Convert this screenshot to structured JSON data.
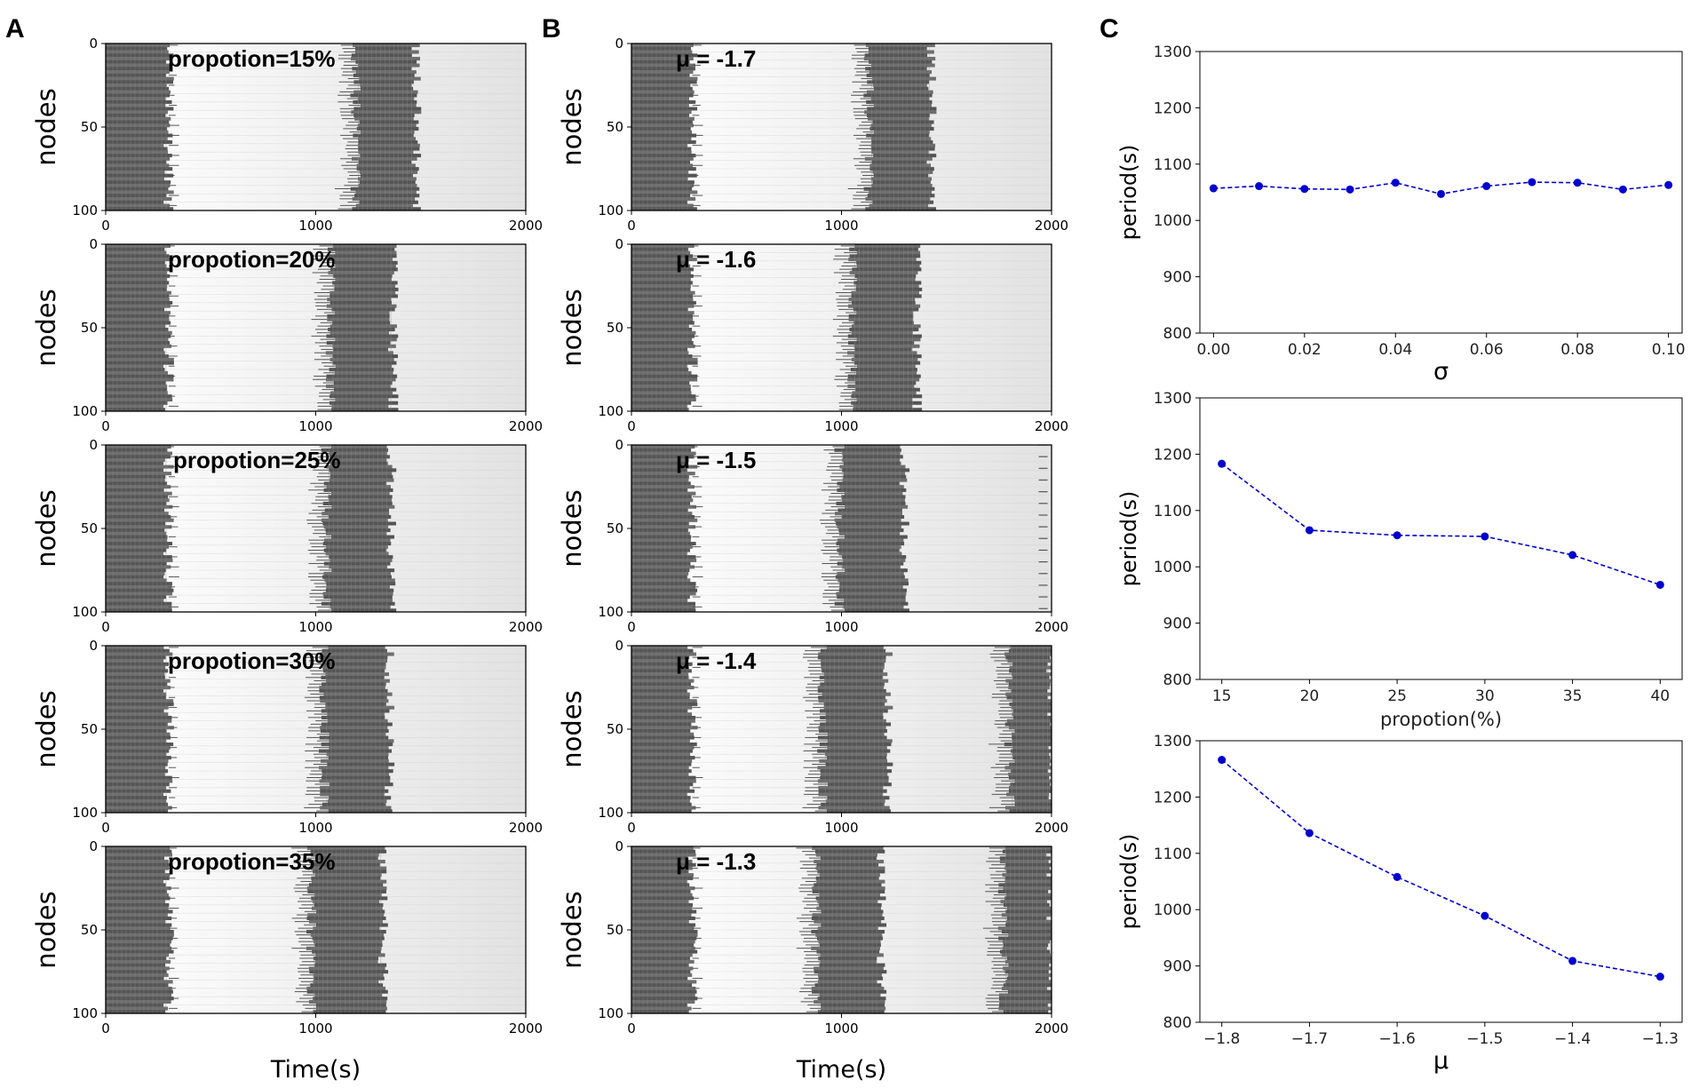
{
  "panel_labels": [
    "A",
    "B",
    "C"
  ],
  "colors": {
    "series": "#0000cc",
    "raster": "#6e6e6e",
    "raster_dark": "#555555",
    "axis": "#000000"
  },
  "chart_data": [
    {
      "type": "heatmap",
      "panel": "A",
      "title": "",
      "xlabel": "Time(s)",
      "ylabel": "nodes",
      "xlim": [
        0,
        2000
      ],
      "ylim": [
        100,
        0
      ],
      "x_ticks": [
        "0",
        "1000",
        "2000"
      ],
      "y_ticks": [
        "0",
        "50",
        "100"
      ],
      "subplots": [
        {
          "annotation": "propotion=15%",
          "bands": [
            [
              0,
              300
            ],
            [
              1190,
              1480
            ]
          ],
          "edge_ticks": []
        },
        {
          "annotation": "propotion=20%",
          "bands": [
            [
              0,
              300
            ],
            [
              1070,
              1370
            ]
          ],
          "edge_ticks": []
        },
        {
          "annotation": "propotion=25%",
          "bands": [
            [
              0,
              300
            ],
            [
              1050,
              1360
            ]
          ],
          "edge_ticks": []
        },
        {
          "annotation": "propotion=30%",
          "bands": [
            [
              0,
              300
            ],
            [
              1040,
              1350
            ]
          ],
          "edge_ticks": []
        },
        {
          "annotation": "propotion=35%",
          "bands": [
            [
              0,
              300
            ],
            [
              980,
              1320
            ]
          ],
          "edge_ticks": []
        }
      ]
    },
    {
      "type": "heatmap",
      "panel": "B",
      "title": "",
      "xlabel": "Time(s)",
      "ylabel": "nodes",
      "xlim": [
        0,
        2000
      ],
      "ylim": [
        100,
        0
      ],
      "x_ticks": [
        "0",
        "1000",
        "2000"
      ],
      "y_ticks": [
        "0",
        "50",
        "100"
      ],
      "subplots": [
        {
          "annotation": "μ = -1.7",
          "bands": [
            [
              0,
              290
            ],
            [
              1130,
              1430
            ]
          ],
          "edge_ticks": []
        },
        {
          "annotation": "μ = -1.6",
          "bands": [
            [
              0,
              290
            ],
            [
              1050,
              1360
            ]
          ],
          "edge_ticks": []
        },
        {
          "annotation": "μ = -1.5",
          "bands": [
            [
              0,
              290
            ],
            [
              990,
              1300
            ]
          ],
          "edge_ticks": [
            1960
          ]
        },
        {
          "annotation": "μ = -1.4",
          "bands": [
            [
              0,
              290
            ],
            [
              910,
              1220
            ],
            [
              1800,
              2000
            ]
          ],
          "edge_ticks": []
        },
        {
          "annotation": "μ = -1.3",
          "bands": [
            [
              0,
              290
            ],
            [
              880,
              1190
            ],
            [
              1770,
              2000
            ]
          ],
          "edge_ticks": []
        }
      ]
    },
    {
      "type": "line",
      "panel": "C1",
      "xlabel": "σ",
      "ylabel": "period(s)",
      "ylim": [
        800,
        1300
      ],
      "xlim": [
        -0.003,
        0.103
      ],
      "y_ticks": [
        "800",
        "900",
        "1000",
        "1100",
        "1200",
        "1300"
      ],
      "x_ticks": [
        "0.00",
        "0.02",
        "0.04",
        "0.06",
        "0.08",
        "0.10"
      ],
      "series": [
        {
          "name": "period",
          "x": [
            0,
            0.01,
            0.02,
            0.03,
            0.04,
            0.05,
            0.06,
            0.07,
            0.08,
            0.09,
            0.1
          ],
          "y": [
            1057,
            1061,
            1056,
            1055,
            1067,
            1047,
            1061,
            1068,
            1067,
            1055,
            1063
          ]
        }
      ]
    },
    {
      "type": "line",
      "panel": "C2",
      "xlabel": "propotion(%)",
      "ylabel": "period(s)",
      "ylim": [
        800,
        1300
      ],
      "xlim": [
        13.75,
        41.25
      ],
      "y_ticks": [
        "800",
        "900",
        "1000",
        "1100",
        "1200",
        "1300"
      ],
      "x_ticks": [
        "15",
        "20",
        "25",
        "30",
        "35",
        "40"
      ],
      "series": [
        {
          "name": "period",
          "x": [
            15,
            20,
            25,
            30,
            35,
            40
          ],
          "y": [
            1183,
            1065,
            1056,
            1054,
            1021,
            968
          ]
        }
      ]
    },
    {
      "type": "line",
      "panel": "C3",
      "xlabel": "μ",
      "ylabel": "period(s)",
      "ylim": [
        800,
        1300
      ],
      "xlim": [
        -1.825,
        -1.275
      ],
      "y_ticks": [
        "800",
        "900",
        "1000",
        "1100",
        "1200",
        "1300"
      ],
      "x_ticks": [
        "−1.8",
        "−1.7",
        "−1.6",
        "−1.5",
        "−1.4",
        "−1.3"
      ],
      "series": [
        {
          "name": "period",
          "x": [
            -1.8,
            -1.7,
            -1.6,
            -1.5,
            -1.4,
            -1.3
          ],
          "y": [
            1266,
            1136,
            1058,
            989,
            909,
            881
          ]
        }
      ]
    }
  ]
}
